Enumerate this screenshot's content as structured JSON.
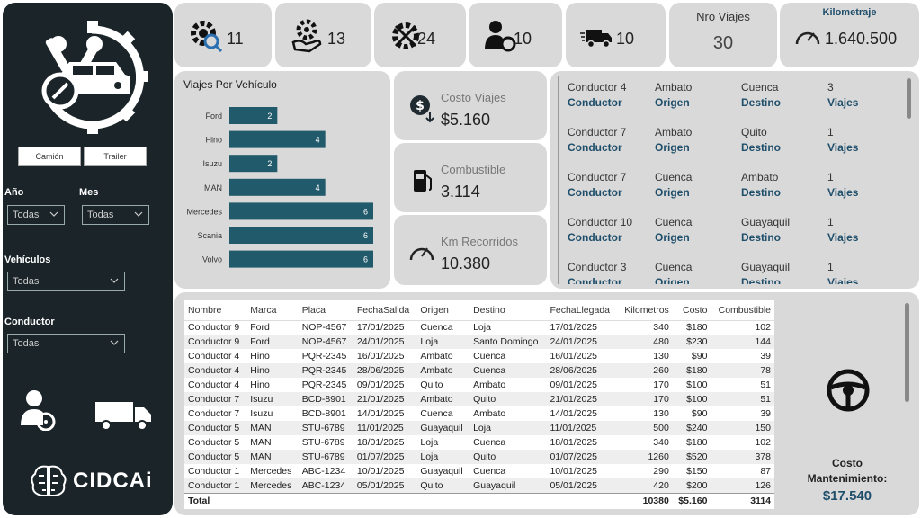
{
  "filters": {
    "btn_camion": "Camión",
    "btn_trailer": "Trailer",
    "anio_label": "Año",
    "anio_value": "Todas",
    "mes_label": "Mes",
    "mes_value": "Todas",
    "vehiculos_label": "Vehículos",
    "vehiculos_value": "Todas",
    "conductor_label": "Conductor",
    "conductor_value": "Todas"
  },
  "brand": {
    "name": "CIDCAi"
  },
  "kpis": {
    "k1": "11",
    "k2": "13",
    "k3": "24",
    "k4": "10",
    "k5": "10",
    "nro_viajes_title": "Nro Viajes",
    "nro_viajes_value": "30",
    "km_title": "Kilometraje",
    "km_value": "1.640.500"
  },
  "mid": {
    "costo_title": "Costo Viajes",
    "costo_value": "$5.160",
    "comb_title": "Combustible",
    "comb_value": "3.114",
    "km_title": "Km Recorridos",
    "km_value": "10.380"
  },
  "chart_data": {
    "type": "bar",
    "orientation": "horizontal",
    "title": "Viajes Por Vehículo",
    "categories": [
      "Ford",
      "Hino",
      "Isuzu",
      "MAN",
      "Mercedes",
      "Scania",
      "Volvo"
    ],
    "values": [
      2,
      4,
      2,
      4,
      6,
      6,
      6
    ],
    "xlim": [
      0,
      6
    ],
    "color": "#215a6b"
  },
  "trips": [
    {
      "name": "Conductor 4",
      "origin": "Ambato",
      "dest": "Cuenca",
      "count": "3"
    },
    {
      "name": "Conductor 7",
      "origin": "Ambato",
      "dest": "Quito",
      "count": "1"
    },
    {
      "name": "Conductor 7",
      "origin": "Cuenca",
      "dest": "Ambato",
      "count": "1"
    },
    {
      "name": "Conductor 10",
      "origin": "Cuenca",
      "dest": "Guayaquil",
      "count": "1"
    },
    {
      "name": "Conductor 3",
      "origin": "Cuenca",
      "dest": "Guayaquil",
      "count": "1"
    }
  ],
  "trip_labels": {
    "conductor": "Conductor",
    "origen": "Origen",
    "destino": "Destino",
    "viajes": "Viajes"
  },
  "table": {
    "headers": [
      "Nombre",
      "Marca",
      "Placa",
      "FechaSalida",
      "Origen",
      "Destino",
      "FechaLlegada",
      "Kilometros",
      "Costo",
      "Combustible"
    ],
    "rows": [
      [
        "Conductor 9",
        "Ford",
        "NOP-4567",
        "17/01/2025",
        "Cuenca",
        "Loja",
        "17/01/2025",
        "340",
        "$180",
        "102"
      ],
      [
        "Conductor 9",
        "Ford",
        "NOP-4567",
        "24/01/2025",
        "Loja",
        "Santo Domingo",
        "24/01/2025",
        "480",
        "$230",
        "144"
      ],
      [
        "Conductor 4",
        "Hino",
        "PQR-2345",
        "16/01/2025",
        "Ambato",
        "Cuenca",
        "16/01/2025",
        "130",
        "$90",
        "39"
      ],
      [
        "Conductor 4",
        "Hino",
        "PQR-2345",
        "28/06/2025",
        "Ambato",
        "Cuenca",
        "28/06/2025",
        "260",
        "$180",
        "78"
      ],
      [
        "Conductor 4",
        "Hino",
        "PQR-2345",
        "09/01/2025",
        "Quito",
        "Ambato",
        "09/01/2025",
        "170",
        "$100",
        "51"
      ],
      [
        "Conductor 7",
        "Isuzu",
        "BCD-8901",
        "21/01/2025",
        "Ambato",
        "Quito",
        "21/01/2025",
        "170",
        "$100",
        "51"
      ],
      [
        "Conductor 7",
        "Isuzu",
        "BCD-8901",
        "14/01/2025",
        "Cuenca",
        "Ambato",
        "14/01/2025",
        "130",
        "$90",
        "39"
      ],
      [
        "Conductor 5",
        "MAN",
        "STU-6789",
        "11/01/2025",
        "Guayaquil",
        "Loja",
        "11/01/2025",
        "500",
        "$240",
        "150"
      ],
      [
        "Conductor 5",
        "MAN",
        "STU-6789",
        "18/01/2025",
        "Loja",
        "Cuenca",
        "18/01/2025",
        "340",
        "$180",
        "102"
      ],
      [
        "Conductor 5",
        "MAN",
        "STU-6789",
        "01/07/2025",
        "Loja",
        "Quito",
        "01/07/2025",
        "1260",
        "$520",
        "378"
      ],
      [
        "Conductor 1",
        "Mercedes",
        "ABC-1234",
        "10/01/2025",
        "Guayaquil",
        "Cuenca",
        "10/01/2025",
        "290",
        "$150",
        "87"
      ],
      [
        "Conductor 1",
        "Mercedes",
        "ABC-1234",
        "05/01/2025",
        "Quito",
        "Guayaquil",
        "05/01/2025",
        "420",
        "$200",
        "126"
      ]
    ],
    "total": {
      "label": "Total",
      "km": "10380",
      "costo": "$5.160",
      "comb": "3114"
    }
  },
  "mantenimiento": {
    "title": "Costo Mantenimiento:",
    "value": "$17.540"
  }
}
